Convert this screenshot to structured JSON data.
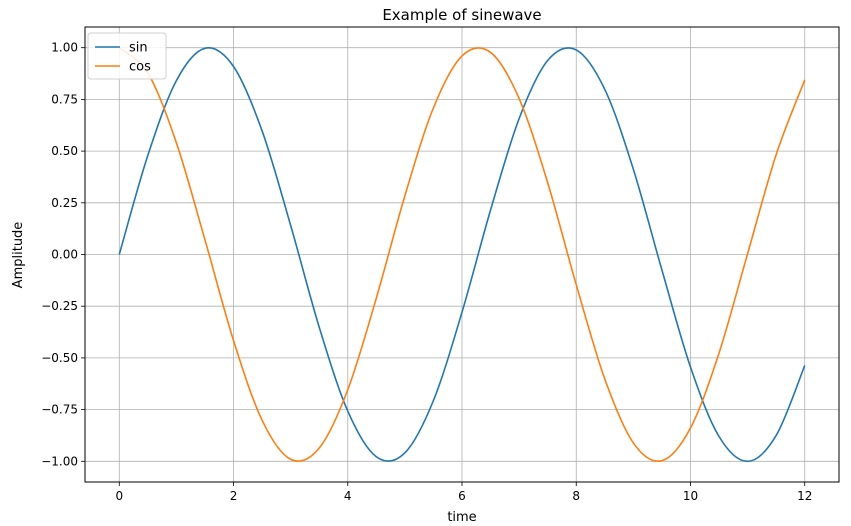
{
  "chart_data": {
    "type": "line",
    "title": "Example of sinewave",
    "xlabel": "time",
    "ylabel": "Amplitude",
    "xlim": [
      -0.6,
      12.6
    ],
    "ylim": [
      -1.1,
      1.1
    ],
    "x_ticks": [
      0,
      2,
      4,
      6,
      8,
      10,
      12
    ],
    "x_tick_labels": [
      "0",
      "2",
      "4",
      "6",
      "8",
      "10",
      "12"
    ],
    "y_ticks": [
      1.0,
      0.75,
      0.5,
      0.25,
      0.0,
      -0.25,
      -0.5,
      -0.75,
      -1.0
    ],
    "y_tick_labels": [
      "1.00",
      "0.75",
      "0.50",
      "0.25",
      "0.00",
      "−0.25",
      "−0.50",
      "−0.75",
      "−1.00"
    ],
    "grid": true,
    "legend_position": "top-left",
    "x": [
      0,
      0.5,
      1,
      1.5,
      2,
      2.5,
      3,
      3.5,
      4,
      4.5,
      5,
      5.5,
      6,
      6.5,
      7,
      7.5,
      8,
      8.5,
      9,
      9.5,
      10,
      10.5,
      11,
      11.5,
      12
    ],
    "series": [
      {
        "name": "sin",
        "color": "#1f77b4",
        "values": [
          0.0,
          0.479,
          0.841,
          0.997,
          0.909,
          0.598,
          0.141,
          -0.351,
          -0.757,
          -0.978,
          -0.959,
          -0.706,
          -0.279,
          0.215,
          0.657,
          0.938,
          0.989,
          0.798,
          0.412,
          -0.075,
          -0.544,
          -0.88,
          -1.0,
          -0.875,
          -0.537
        ]
      },
      {
        "name": "cos",
        "color": "#ff7f0e",
        "values": [
          1.0,
          0.878,
          0.54,
          0.071,
          -0.416,
          -0.801,
          -0.99,
          -0.936,
          -0.654,
          -0.211,
          0.284,
          0.709,
          0.96,
          0.977,
          0.754,
          0.347,
          -0.146,
          -0.602,
          -0.911,
          -0.997,
          -0.839,
          -0.476,
          0.004,
          0.483,
          0.844
        ]
      }
    ]
  }
}
